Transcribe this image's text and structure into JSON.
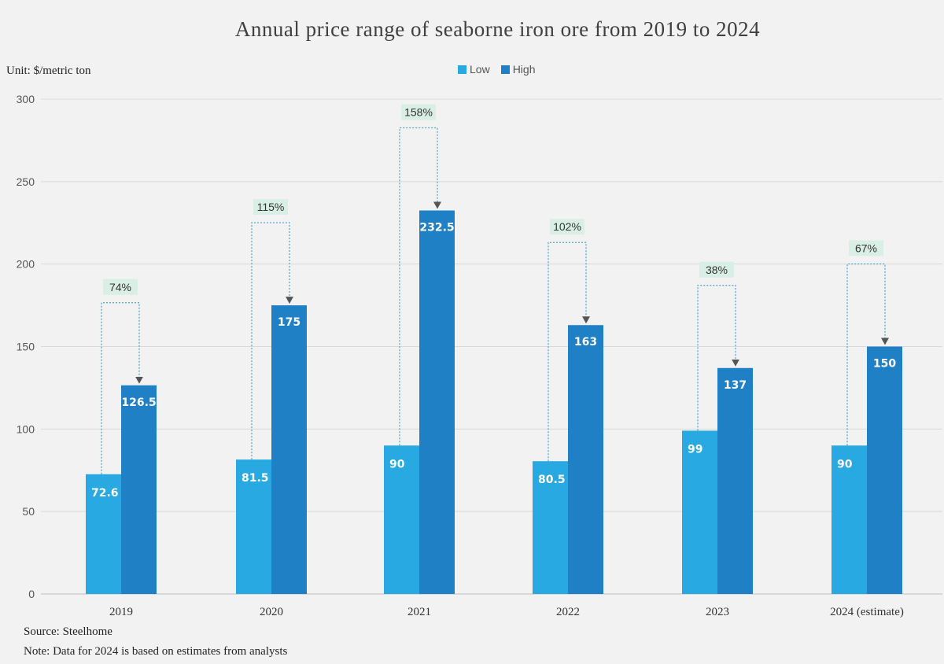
{
  "header": {
    "title": "Annual price range of seaborne iron ore from 2019 to 2024",
    "unit": "Unit: $/metric  ton"
  },
  "legend": {
    "low_label": "Low",
    "high_label": "High"
  },
  "footer": {
    "source": "Source: Steelhome",
    "note": "Note: Data for 2024  is based on estimates from  analysts"
  },
  "colors": {
    "low": "#29a9e1",
    "high": "#2080c6",
    "grid": "#d9d9d9",
    "arrow": "#555555",
    "bracket": "#4aa3c8",
    "pct_bg": "#d9efe6"
  },
  "chart_data": {
    "type": "bar",
    "categories": [
      "2019",
      "2020",
      "2021",
      "2022",
      "2023",
      "2024 (estimate)"
    ],
    "series": [
      {
        "name": "Low",
        "values": [
          72.6,
          81.5,
          90,
          80.5,
          99,
          90
        ]
      },
      {
        "name": "High",
        "values": [
          126.5,
          175,
          232.5,
          163,
          137,
          150
        ]
      }
    ],
    "value_labels": {
      "Low": [
        "72.6",
        "81.5",
        "90",
        "80.5",
        "99",
        "90"
      ],
      "High": [
        "126.5",
        "175",
        "232.5",
        "163",
        "137",
        "150"
      ]
    },
    "annotations": [
      "74%",
      "115%",
      "158%",
      "102%",
      "38%",
      "67%"
    ],
    "ylim": [
      0,
      300
    ],
    "yticks": [
      0,
      50,
      100,
      150,
      200,
      250,
      300
    ],
    "grid": true,
    "legend_position": "top-center"
  }
}
